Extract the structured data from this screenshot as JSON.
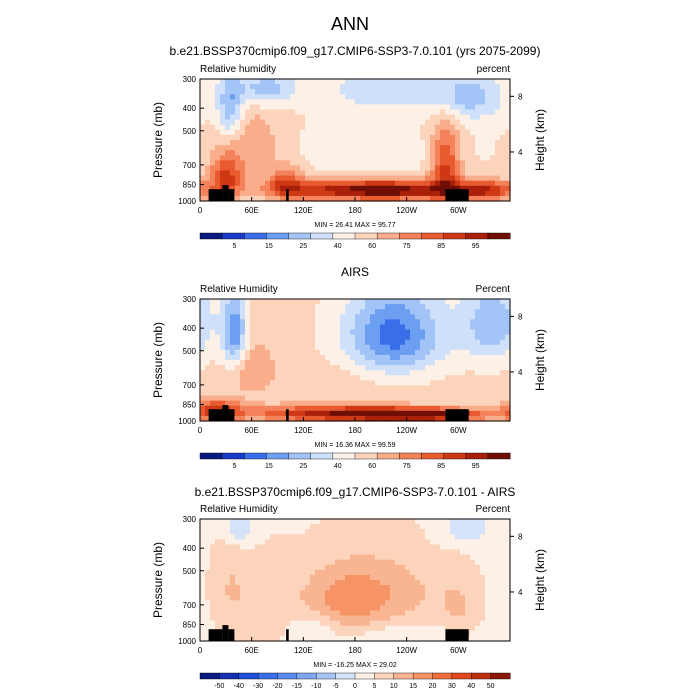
{
  "title": "ANN",
  "chart_data": [
    {
      "type": "heatmap",
      "title": "b.e21.BSSP370cmip6.f09_g17.CMIP6-SSP3-7.0.101 (yrs 2075-2099)",
      "left_label": "Relative humidity",
      "right_label": "percent",
      "ylabel": "Pressure (mb)",
      "ylabel_right": "Height (km)",
      "x_ticks": [
        "0",
        "60E",
        "120E",
        "180",
        "120W",
        "60W"
      ],
      "x_tick_lon": [
        0,
        60,
        120,
        180,
        240,
        300
      ],
      "xlim": [
        0,
        360
      ],
      "y_ticks": [
        "300",
        "400",
        "500",
        "700",
        "850",
        "1000"
      ],
      "y_tick_values": [
        300,
        400,
        500,
        700,
        850,
        1000
      ],
      "ylim": [
        1000,
        300
      ],
      "height_ticks": [
        "8",
        "4"
      ],
      "height_tick_km": [
        8,
        4
      ],
      "stats": "MIN = 26.41  MAX = 95.77",
      "colorbar_labels": [
        "5",
        "15",
        "25",
        "40",
        "60",
        "75",
        "85",
        "95"
      ],
      "colorbar_colors": [
        "#0a1a80",
        "#1a3bc8",
        "#3a6ee8",
        "#6c9ef2",
        "#a2c4f6",
        "#cfe0fa",
        "#fdf0e6",
        "#fcd4bc",
        "#f9ad8a",
        "#f4835c",
        "#e85a30",
        "#cf3814",
        "#a8200a",
        "#6e0e04"
      ],
      "value_range": [
        0,
        100
      ],
      "base_value": 50,
      "features": [
        {
          "lon": 35,
          "p": 400,
          "value": 28,
          "rx": 10,
          "rp": 90
        },
        {
          "lon": 75,
          "p": 330,
          "value": 30,
          "rx": 25,
          "rp": 40
        },
        {
          "lon": 215,
          "p": 330,
          "value": 36,
          "rx": 45,
          "rp": 50
        },
        {
          "lon": 310,
          "p": 360,
          "value": 32,
          "rx": 30,
          "rp": 60
        },
        {
          "lon": 195,
          "p": 620,
          "value": 44,
          "rx": 50,
          "rp": 80
        },
        {
          "lon": 60,
          "p": 560,
          "value": 62,
          "rx": 25,
          "rp": 140
        },
        {
          "lon": 30,
          "p": 800,
          "value": 80,
          "rx": 14,
          "rp": 120
        },
        {
          "lon": 100,
          "p": 830,
          "value": 72,
          "rx": 16,
          "rp": 90
        },
        {
          "lon": 160,
          "p": 900,
          "value": 82,
          "rx": 60,
          "rp": 60
        },
        {
          "lon": 240,
          "p": 900,
          "value": 82,
          "rx": 50,
          "rp": 60
        },
        {
          "lon": 285,
          "p": 720,
          "value": 80,
          "rx": 12,
          "rp": 200
        },
        {
          "lon": 330,
          "p": 900,
          "value": 84,
          "rx": 25,
          "rp": 60
        }
      ]
    },
    {
      "type": "heatmap",
      "title": "AIRS",
      "left_label": "Relative Humidity",
      "right_label": "Percent",
      "ylabel": "Pressure (mb)",
      "ylabel_right": "Height (km)",
      "x_ticks": [
        "0",
        "60E",
        "120E",
        "180",
        "120W",
        "60W"
      ],
      "x_tick_lon": [
        0,
        60,
        120,
        180,
        240,
        300
      ],
      "xlim": [
        0,
        360
      ],
      "y_ticks": [
        "300",
        "400",
        "500",
        "700",
        "850",
        "1000"
      ],
      "y_tick_values": [
        300,
        400,
        500,
        700,
        850,
        1000
      ],
      "ylim": [
        1000,
        300
      ],
      "height_ticks": [
        "8",
        "4"
      ],
      "height_tick_km": [
        8,
        4
      ],
      "stats": "MIN = 16.36  MAX = 99.59",
      "colorbar_labels": [
        "5",
        "15",
        "25",
        "40",
        "60",
        "75",
        "85",
        "95"
      ],
      "colorbar_colors": [
        "#0a1a80",
        "#1a3bc8",
        "#3a6ee8",
        "#6c9ef2",
        "#a2c4f6",
        "#cfe0fa",
        "#fdf0e6",
        "#fcd4bc",
        "#f9ad8a",
        "#f4835c",
        "#e85a30",
        "#cf3814",
        "#a8200a",
        "#6e0e04"
      ],
      "value_range": [
        0,
        100
      ],
      "base_value": 52,
      "features": [
        {
          "lon": 40,
          "p": 420,
          "value": 22,
          "rx": 10,
          "rp": 110
        },
        {
          "lon": 225,
          "p": 430,
          "value": 18,
          "rx": 40,
          "rp": 130
        },
        {
          "lon": 340,
          "p": 380,
          "value": 30,
          "rx": 25,
          "rp": 110
        },
        {
          "lon": 170,
          "p": 650,
          "value": 55,
          "rx": 60,
          "rp": 100
        },
        {
          "lon": 60,
          "p": 600,
          "value": 62,
          "rx": 20,
          "rp": 120
        },
        {
          "lon": 160,
          "p": 930,
          "value": 90,
          "rx": 70,
          "rp": 50
        },
        {
          "lon": 260,
          "p": 940,
          "value": 92,
          "rx": 50,
          "rp": 40
        },
        {
          "lon": 20,
          "p": 900,
          "value": 80,
          "rx": 20,
          "rp": 70
        }
      ]
    },
    {
      "type": "heatmap",
      "title": "b.e21.BSSP370cmip6.f09_g17.CMIP6-SSP3-7.0.101 - AIRS",
      "left_label": "Relative Humidity",
      "right_label": "Percent",
      "ylabel": "Pressure (mb)",
      "ylabel_right": "Height (km)",
      "x_ticks": [
        "0",
        "60E",
        "120E",
        "180",
        "120W",
        "60W"
      ],
      "x_tick_lon": [
        0,
        60,
        120,
        180,
        240,
        300
      ],
      "xlim": [
        0,
        360
      ],
      "y_ticks": [
        "300",
        "400",
        "500",
        "700",
        "850",
        "1000"
      ],
      "y_tick_values": [
        300,
        400,
        500,
        700,
        850,
        1000
      ],
      "ylim": [
        1000,
        300
      ],
      "height_ticks": [
        "8",
        "4"
      ],
      "height_tick_km": [
        8,
        4
      ],
      "stats": "MIN = -16.25  MAX = 29.02",
      "colorbar_labels": [
        "-50",
        "-40",
        "-30",
        "-20",
        "-15",
        "-10",
        "-5",
        "0",
        "5",
        "10",
        "15",
        "20",
        "30",
        "40",
        "50"
      ],
      "colorbar_colors": [
        "#0a1a80",
        "#1430b0",
        "#2050d8",
        "#3a6ee8",
        "#5a8aee",
        "#7ea6f2",
        "#a8c4f6",
        "#d4e2fa",
        "#fdf0e6",
        "#fcd4bc",
        "#f9b592",
        "#f69466",
        "#ef6e3c",
        "#e04a1c",
        "#c0300c",
        "#8c1806"
      ],
      "value_range": [
        -60,
        60
      ],
      "base_value": 6,
      "features": [
        {
          "lon": 200,
          "p": 620,
          "value": 22,
          "rx": 55,
          "rp": 160
        },
        {
          "lon": 165,
          "p": 700,
          "value": 16,
          "rx": 30,
          "rp": 140
        },
        {
          "lon": 75,
          "p": 720,
          "value": 12,
          "rx": 25,
          "rp": 200
        },
        {
          "lon": 35,
          "p": 580,
          "value": 14,
          "rx": 14,
          "rp": 200
        },
        {
          "lon": 300,
          "p": 720,
          "value": 14,
          "rx": 15,
          "rp": 160
        },
        {
          "lon": 45,
          "p": 330,
          "value": -8,
          "rx": 12,
          "rp": 40
        },
        {
          "lon": 310,
          "p": 330,
          "value": -6,
          "rx": 20,
          "rp": 40
        },
        {
          "lon": 130,
          "p": 870,
          "value": -2,
          "rx": 20,
          "rp": 80
        },
        {
          "lon": 240,
          "p": 920,
          "value": 0,
          "rx": 40,
          "rp": 50
        }
      ]
    }
  ]
}
